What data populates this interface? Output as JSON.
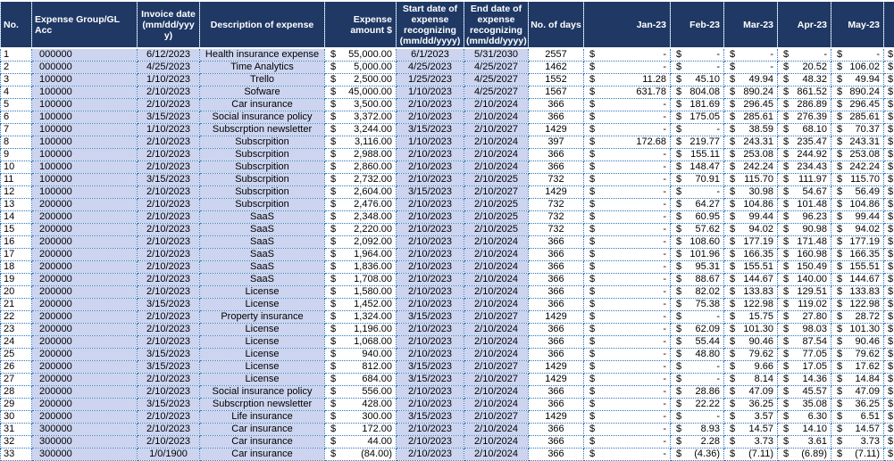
{
  "app": {
    "type": "spreadsheet-expense-recognition-table"
  },
  "colors": {
    "header_bg": "#1f3864",
    "header_text": "#ffffff",
    "row_shade": "#ccd4ef",
    "grid_line": "#2e75b6"
  },
  "table": {
    "currency": "$",
    "header": {
      "no": "No.",
      "group": "Expense Group/GL Acc",
      "invoice": "Invoice date (mm/dd/yyyy)",
      "desc": "Description of expense",
      "amount": "Expense amount $",
      "start": "Start date of expense recognizing (mm/dd/yyyy)",
      "end": "End date of expense recognizing (mm/dd/yyyy)",
      "days": "No. of days",
      "months": [
        "Jan-23",
        "Feb-23",
        "Mar-23",
        "Apr-23",
        "May-23"
      ],
      "next_month_cut": ""
    },
    "rows": [
      [
        "1",
        "000000",
        "6/12/2023",
        "Health insurance expense",
        "55,000.00",
        "6/1/2023",
        "5/31/2030",
        "2557",
        "-",
        "-",
        "-",
        "-",
        "-"
      ],
      [
        "2",
        "000000",
        "4/25/2023",
        "Time Analytics",
        "5,000.00",
        "4/25/2023",
        "4/25/2027",
        "1462",
        "-",
        "-",
        "-",
        "20.52",
        "106.02"
      ],
      [
        "3",
        "100000",
        "1/10/2023",
        "Trello",
        "2,500.00",
        "1/25/2023",
        "4/25/2027",
        "1552",
        "11.28",
        "45.10",
        "49.94",
        "48.32",
        "49.94"
      ],
      [
        "4",
        "100000",
        "2/10/2023",
        "Sofware",
        "45,000.00",
        "1/10/2023",
        "4/25/2027",
        "1567",
        "631.78",
        "804.08",
        "890.24",
        "861.52",
        "890.24"
      ],
      [
        "5",
        "100000",
        "2/10/2023",
        "Car insurance",
        "3,500.00",
        "2/10/2023",
        "2/10/2024",
        "366",
        "-",
        "181.69",
        "296.45",
        "286.89",
        "296.45"
      ],
      [
        "6",
        "100000",
        "3/15/2023",
        "Social insurance policy",
        "3,372.00",
        "2/10/2023",
        "2/10/2024",
        "366",
        "-",
        "175.05",
        "285.61",
        "276.39",
        "285.61"
      ],
      [
        "7",
        "100000",
        "1/10/2023",
        "Subscrption newsletter",
        "3,244.00",
        "3/15/2023",
        "2/10/2027",
        "1429",
        "-",
        "-",
        "38.59",
        "68.10",
        "70.37"
      ],
      [
        "8",
        "100000",
        "2/10/2023",
        "Subscrpition",
        "3,116.00",
        "1/10/2023",
        "2/10/2024",
        "397",
        "172.68",
        "219.77",
        "243.31",
        "235.47",
        "243.31"
      ],
      [
        "9",
        "100000",
        "2/10/2023",
        "Subscrpition",
        "2,988.00",
        "2/10/2023",
        "2/10/2024",
        "366",
        "-",
        "155.11",
        "253.08",
        "244.92",
        "253.08"
      ],
      [
        "10",
        "100000",
        "2/10/2023",
        "Subscrpition",
        "2,860.00",
        "2/10/2023",
        "2/10/2024",
        "366",
        "-",
        "148.47",
        "242.24",
        "234.43",
        "242.24"
      ],
      [
        "11",
        "100000",
        "3/15/2023",
        "Subscrpition",
        "2,732.00",
        "2/10/2023",
        "2/10/2025",
        "732",
        "-",
        "70.91",
        "115.70",
        "111.97",
        "115.70"
      ],
      [
        "12",
        "100000",
        "2/10/2023",
        "Subscrpition",
        "2,604.00",
        "3/15/2023",
        "2/10/2027",
        "1429",
        "-",
        "-",
        "30.98",
        "54.67",
        "56.49"
      ],
      [
        "13",
        "200000",
        "2/10/2023",
        "Subscrpition",
        "2,476.00",
        "2/10/2023",
        "2/10/2025",
        "732",
        "-",
        "64.27",
        "104.86",
        "101.48",
        "104.86"
      ],
      [
        "14",
        "200000",
        "2/10/2023",
        "SaaS",
        "2,348.00",
        "2/10/2023",
        "2/10/2025",
        "732",
        "-",
        "60.95",
        "99.44",
        "96.23",
        "99.44"
      ],
      [
        "15",
        "200000",
        "2/10/2023",
        "SaaS",
        "2,220.00",
        "2/10/2023",
        "2/10/2025",
        "732",
        "-",
        "57.62",
        "94.02",
        "90.98",
        "94.02"
      ],
      [
        "16",
        "200000",
        "2/10/2023",
        "SaaS",
        "2,092.00",
        "2/10/2023",
        "2/10/2024",
        "366",
        "-",
        "108.60",
        "177.19",
        "171.48",
        "177.19"
      ],
      [
        "17",
        "200000",
        "2/10/2023",
        "SaaS",
        "1,964.00",
        "2/10/2023",
        "2/10/2024",
        "366",
        "-",
        "101.96",
        "166.35",
        "160.98",
        "166.35"
      ],
      [
        "18",
        "200000",
        "2/10/2023",
        "SaaS",
        "1,836.00",
        "2/10/2023",
        "2/10/2024",
        "366",
        "-",
        "95.31",
        "155.51",
        "150.49",
        "155.51"
      ],
      [
        "19",
        "200000",
        "2/10/2023",
        "SaaS",
        "1,708.00",
        "2/10/2023",
        "2/10/2024",
        "366",
        "-",
        "88.67",
        "144.67",
        "140.00",
        "144.67"
      ],
      [
        "20",
        "200000",
        "2/10/2023",
        "License",
        "1,580.00",
        "2/10/2023",
        "2/10/2024",
        "366",
        "-",
        "82.02",
        "133.83",
        "129.51",
        "133.83"
      ],
      [
        "21",
        "200000",
        "3/15/2023",
        "License",
        "1,452.00",
        "2/10/2023",
        "2/10/2024",
        "366",
        "-",
        "75.38",
        "122.98",
        "119.02",
        "122.98"
      ],
      [
        "22",
        "200000",
        "2/10/2023",
        "Property insurance",
        "1,324.00",
        "3/15/2023",
        "2/10/2027",
        "1429",
        "-",
        "-",
        "15.75",
        "27.80",
        "28.72"
      ],
      [
        "23",
        "200000",
        "2/10/2023",
        "License",
        "1,196.00",
        "2/10/2023",
        "2/10/2024",
        "366",
        "-",
        "62.09",
        "101.30",
        "98.03",
        "101.30"
      ],
      [
        "24",
        "200000",
        "2/10/2023",
        "License",
        "1,068.00",
        "2/10/2023",
        "2/10/2024",
        "366",
        "-",
        "55.44",
        "90.46",
        "87.54",
        "90.46"
      ],
      [
        "25",
        "200000",
        "3/15/2023",
        "License",
        "940.00",
        "2/10/2023",
        "2/10/2024",
        "366",
        "-",
        "48.80",
        "79.62",
        "77.05",
        "79.62"
      ],
      [
        "26",
        "200000",
        "3/15/2023",
        "License",
        "812.00",
        "3/15/2023",
        "2/10/2027",
        "1429",
        "-",
        "-",
        "9.66",
        "17.05",
        "17.62"
      ],
      [
        "27",
        "200000",
        "2/10/2023",
        "License",
        "684.00",
        "3/15/2023",
        "2/10/2027",
        "1429",
        "-",
        "-",
        "8.14",
        "14.36",
        "14.84"
      ],
      [
        "28",
        "200000",
        "2/10/2023",
        "Social insurance policy",
        "556.00",
        "2/10/2023",
        "2/10/2024",
        "366",
        "-",
        "28.86",
        "47.09",
        "45.57",
        "47.09"
      ],
      [
        "29",
        "200000",
        "3/15/2023",
        "Subscrption newsletter",
        "428.00",
        "2/10/2023",
        "2/10/2024",
        "366",
        "-",
        "22.22",
        "36.25",
        "35.08",
        "36.25"
      ],
      [
        "30",
        "200000",
        "2/10/2023",
        "Life insurance",
        "300.00",
        "3/15/2023",
        "2/10/2027",
        "1429",
        "-",
        "-",
        "3.57",
        "6.30",
        "6.51"
      ],
      [
        "31",
        "300000",
        "2/10/2023",
        "Car insurance",
        "172.00",
        "2/10/2023",
        "2/10/2024",
        "366",
        "-",
        "8.93",
        "14.57",
        "14.10",
        "14.57"
      ],
      [
        "32",
        "300000",
        "2/10/2023",
        "Car insurance",
        "44.00",
        "2/10/2023",
        "2/10/2024",
        "366",
        "-",
        "2.28",
        "3.73",
        "3.61",
        "3.73"
      ],
      [
        "33",
        "300000",
        "1/0/1900",
        "Car insurance",
        "(84.00)",
        "2/10/2023",
        "2/10/2024",
        "366",
        "-",
        "(4.36)",
        "(7.11)",
        "(6.89)",
        "(7.11)"
      ]
    ]
  }
}
